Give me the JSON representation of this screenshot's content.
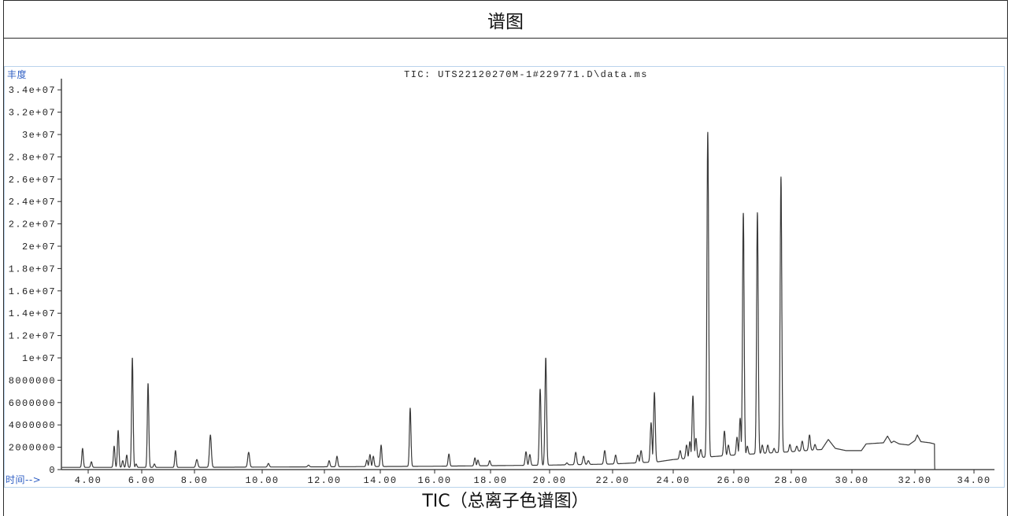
{
  "header": {
    "title": "谱图"
  },
  "caption": "TIC（总离子色谱图）",
  "colors": {
    "frame": "#2b2b2b",
    "chart_border": "#b9d3ec",
    "axis_name": "#2f5fc4",
    "trace": "#3a3a3a"
  },
  "chart_data": {
    "type": "line",
    "title": "TIC: UTS22120270M-1#229771.D\\data.ms",
    "xlabel": "时间-->",
    "ylabel": "丰度",
    "xlim": [
      3.0,
      34.7
    ],
    "ylim": [
      0,
      35000000
    ],
    "grid": false,
    "x_ticks": [
      {
        "value": 4,
        "label": "4.00"
      },
      {
        "value": 6,
        "label": "6.00"
      },
      {
        "value": 8,
        "label": "8.00"
      },
      {
        "value": 10,
        "label": "10.00"
      },
      {
        "value": 12,
        "label": "12.00"
      },
      {
        "value": 14,
        "label": "14.00"
      },
      {
        "value": 16,
        "label": "16.00"
      },
      {
        "value": 18,
        "label": "18.00"
      },
      {
        "value": 20,
        "label": "20.00"
      },
      {
        "value": 22,
        "label": "22.00"
      },
      {
        "value": 24,
        "label": "24.00"
      },
      {
        "value": 26,
        "label": "26.00"
      },
      {
        "value": 28,
        "label": "28.00"
      },
      {
        "value": 30,
        "label": "30.00"
      },
      {
        "value": 32,
        "label": "32.00"
      },
      {
        "value": 34,
        "label": "34.00"
      }
    ],
    "y_ticks": [
      {
        "value": 34000000,
        "label": "3.4e+07"
      },
      {
        "value": 32000000,
        "label": "3.2e+07"
      },
      {
        "value": 30000000,
        "label": "3e+07"
      },
      {
        "value": 28000000,
        "label": "2.8e+07"
      },
      {
        "value": 26000000,
        "label": "2.6e+07"
      },
      {
        "value": 24000000,
        "label": "2.4e+07"
      },
      {
        "value": 22000000,
        "label": "2.2e+07"
      },
      {
        "value": 20000000,
        "label": "2e+07"
      },
      {
        "value": 18000000,
        "label": "1.8e+07"
      },
      {
        "value": 16000000,
        "label": "1.6e+07"
      },
      {
        "value": 14000000,
        "label": "1.4e+07"
      },
      {
        "value": 12000000,
        "label": "1.2e+07"
      },
      {
        "value": 10000000,
        "label": "1e+07"
      },
      {
        "value": 8000000,
        "label": "8000000"
      },
      {
        "value": 6000000,
        "label": "6000000"
      },
      {
        "value": 4000000,
        "label": "4000000"
      },
      {
        "value": 2000000,
        "label": "2000000"
      },
      {
        "value": 0,
        "label": "0"
      }
    ],
    "trace": {
      "baseline": [
        [
          3.0,
          200000
        ],
        [
          8.0,
          200000
        ],
        [
          12.0,
          250000
        ],
        [
          16.0,
          300000
        ],
        [
          18.0,
          350000
        ],
        [
          20.0,
          400000
        ],
        [
          22.0,
          500000
        ],
        [
          23.5,
          700000
        ],
        [
          24.0,
          900000
        ],
        [
          25.0,
          1100000
        ],
        [
          26.0,
          1300000
        ],
        [
          27.0,
          1450000
        ],
        [
          28.0,
          1600000
        ],
        [
          28.5,
          1700000
        ],
        [
          29.0,
          1800000
        ],
        [
          29.22,
          2700000
        ],
        [
          29.45,
          1900000
        ],
        [
          29.8,
          1700000
        ],
        [
          30.3,
          1700000
        ],
        [
          30.45,
          2300000
        ],
        [
          31.0,
          2400000
        ],
        [
          31.13,
          3000000
        ],
        [
          31.25,
          2400000
        ],
        [
          31.33,
          2550000
        ],
        [
          31.5,
          2300000
        ],
        [
          31.8,
          2200000
        ],
        [
          32.0,
          2600000
        ],
        [
          32.08,
          3100000
        ],
        [
          32.2,
          2500000
        ],
        [
          32.5,
          2400000
        ],
        [
          32.66,
          2300000
        ],
        [
          32.67,
          0
        ]
      ],
      "peaks": [
        [
          3.79,
          1900000
        ],
        [
          4.12,
          700000
        ],
        [
          4.97,
          2100000
        ],
        [
          5.12,
          3500000
        ],
        [
          5.29,
          800000
        ],
        [
          5.44,
          1300000
        ],
        [
          5.65,
          10000000
        ],
        [
          5.79,
          500000
        ],
        [
          6.24,
          7700000
        ],
        [
          6.48,
          500000
        ],
        [
          7.28,
          1700000
        ],
        [
          8.07,
          900000
        ],
        [
          8.47,
          3100000
        ],
        [
          9.6,
          1550000
        ],
        [
          10.2,
          550000
        ],
        [
          11.49,
          400000
        ],
        [
          12.17,
          800000
        ],
        [
          12.45,
          1200000
        ],
        [
          13.52,
          850000
        ],
        [
          13.63,
          1350000
        ],
        [
          13.75,
          1200000
        ],
        [
          14.03,
          2200000
        ],
        [
          15.1,
          5500000
        ],
        [
          16.51,
          1400000
        ],
        [
          17.44,
          1050000
        ],
        [
          17.55,
          850000
        ],
        [
          17.97,
          800000
        ],
        [
          19.2,
          1600000
        ],
        [
          19.33,
          1350000
        ],
        [
          19.68,
          7200000
        ],
        [
          19.87,
          10000000
        ],
        [
          20.55,
          600000
        ],
        [
          20.83,
          1550000
        ],
        [
          21.08,
          1200000
        ],
        [
          21.23,
          800000
        ],
        [
          21.75,
          1700000
        ],
        [
          22.1,
          1300000
        ],
        [
          22.83,
          1300000
        ],
        [
          22.94,
          1700000
        ],
        [
          23.27,
          4200000
        ],
        [
          23.38,
          6900000
        ],
        [
          23.74,
          500000
        ],
        [
          24.23,
          1700000
        ],
        [
          24.44,
          2200000
        ],
        [
          24.55,
          2500000
        ],
        [
          24.65,
          6600000
        ],
        [
          24.75,
          2800000
        ],
        [
          24.91,
          1800000
        ],
        [
          25.14,
          30200000
        ],
        [
          25.69,
          3450000
        ],
        [
          25.82,
          2200000
        ],
        [
          26.11,
          2900000
        ],
        [
          26.22,
          4600000
        ],
        [
          26.33,
          23000000
        ],
        [
          26.47,
          2100000
        ],
        [
          26.82,
          23000000
        ],
        [
          26.99,
          2200000
        ],
        [
          27.18,
          2200000
        ],
        [
          27.4,
          1900000
        ],
        [
          27.64,
          26200000
        ],
        [
          27.95,
          2250000
        ],
        [
          28.18,
          2100000
        ],
        [
          28.36,
          2550000
        ],
        [
          28.6,
          3100000
        ],
        [
          28.78,
          2250000
        ]
      ]
    }
  }
}
